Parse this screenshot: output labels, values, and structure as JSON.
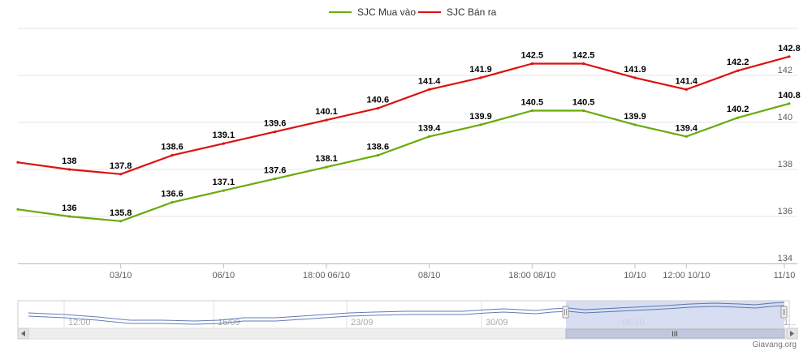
{
  "chart_data": {
    "type": "line",
    "title": "",
    "xlabel": "",
    "ylabel": "",
    "ylim": [
      134,
      144
    ],
    "y_ticks": [
      134,
      136,
      138,
      140,
      142
    ],
    "x_tick_labels": [
      "03/10",
      "06/10",
      "18:00 06/10",
      "08/10",
      "18:00 08/10",
      "10/10",
      "12:00 10/10",
      "11/10"
    ],
    "grid": true,
    "legend_position": "top-center",
    "series": [
      {
        "name": "SJC Mua vào",
        "color": "#6aaa0a",
        "values": [
          136.3,
          136,
          135.8,
          136.6,
          137.1,
          137.6,
          138.1,
          138.6,
          139.4,
          139.9,
          140.5,
          140.5,
          139.9,
          139.4,
          140.2,
          140.8
        ],
        "labels": [
          "",
          "136",
          "135.8",
          "136.6",
          "137.1",
          "137.6",
          "138.1",
          "138.6",
          "139.4",
          "139.9",
          "140.5",
          "140.5",
          "139.9",
          "139.4",
          "140.2",
          "140.8"
        ]
      },
      {
        "name": "SJC Bán ra",
        "color": "#dd1111",
        "values": [
          138.3,
          138,
          137.8,
          138.6,
          139.1,
          139.6,
          140.1,
          140.6,
          141.4,
          141.9,
          142.5,
          142.5,
          141.9,
          141.4,
          142.2,
          142.8
        ],
        "labels": [
          "",
          "138",
          "137.8",
          "138.6",
          "139.1",
          "139.6",
          "140.1",
          "140.6",
          "141.4",
          "141.9",
          "142.5",
          "142.5",
          "141.9",
          "141.4",
          "142.2",
          "142.8"
        ]
      }
    ]
  },
  "navigator": {
    "labels": [
      "12:00",
      "16/09",
      "23/09",
      "30/09",
      "06/10",
      "1..."
    ],
    "series_color": "#4466aa",
    "scroll_grip": "III"
  },
  "credit": "Giavang.org"
}
